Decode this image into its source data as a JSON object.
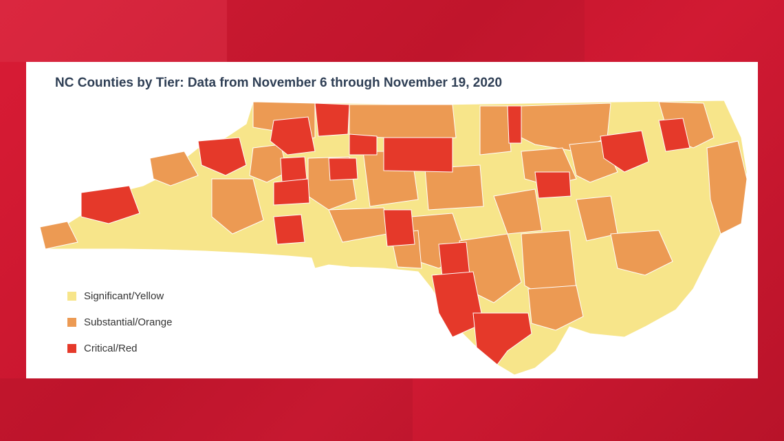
{
  "title": "NC Counties by Tier: Data from November 6 through November 19, 2020",
  "colors": {
    "yellow": "#f7e58a",
    "orange": "#ec9a53",
    "red": "#e5392a",
    "frame_red": "#d11a33"
  },
  "legend": [
    {
      "label": "Significant/Yellow",
      "color_key": "yellow"
    },
    {
      "label": "Substantial/Orange",
      "color_key": "orange"
    },
    {
      "label": "Critical/Red",
      "color_key": "red"
    }
  ]
}
